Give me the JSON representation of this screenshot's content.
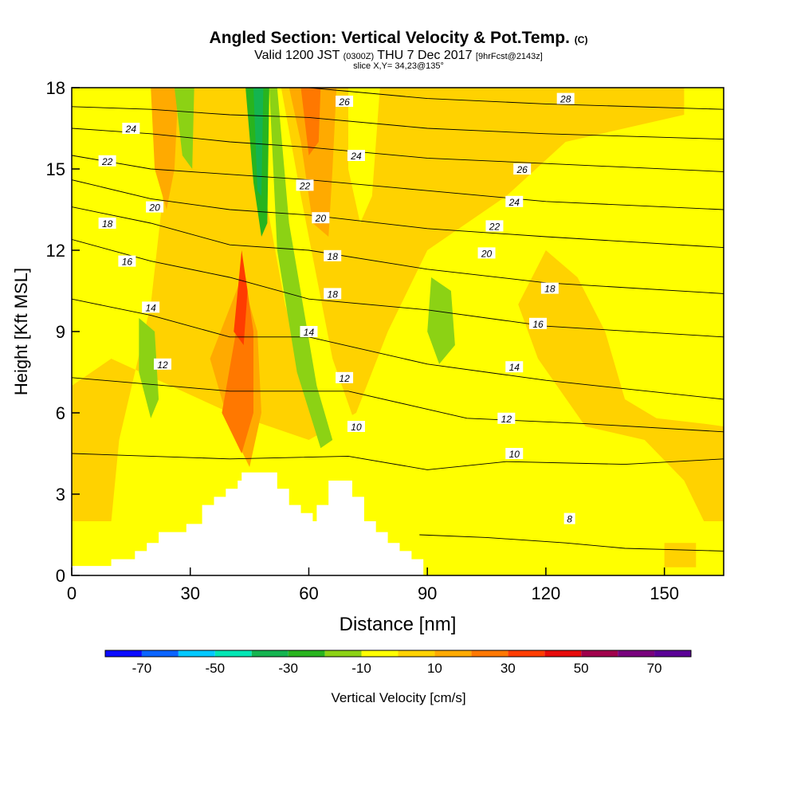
{
  "header": {
    "title": "Angled Section: Vertical Velocity & Pot.Temp.",
    "title_unit": "(C)",
    "valid_prefix": "Valid 1200 JST",
    "valid_utc": "(0300Z)",
    "valid_date": "THU 7 Dec 2017",
    "forecast_info": "[9hrFcst@2143z]",
    "slice_info": "slice X,Y= 34,23@135°"
  },
  "chart_data": {
    "type": "heatmap",
    "xlabel": "Distance [nm]",
    "ylabel": "Height [Kft MSL]",
    "xlim": [
      0,
      165
    ],
    "ylim": [
      0,
      18
    ],
    "x_ticks": [
      0,
      30,
      60,
      90,
      120,
      150
    ],
    "y_ticks": [
      0,
      3,
      6,
      9,
      12,
      15,
      18
    ],
    "colorbar": {
      "label": "Vertical Velocity [cm/s]",
      "tick_labels": [
        "-70",
        "-50",
        "-30",
        "-10",
        "10",
        "30",
        "50",
        "70"
      ],
      "tick_values": [
        -70,
        -50,
        -30,
        -10,
        10,
        30,
        50,
        70
      ],
      "bins": [
        -80,
        -70,
        -60,
        -50,
        -40,
        -30,
        -20,
        -10,
        0,
        10,
        20,
        30,
        40,
        50,
        60,
        70,
        80
      ],
      "colors": [
        "#0a0aff",
        "#0a64ff",
        "#00c8ff",
        "#00e6b4",
        "#14b450",
        "#28b41e",
        "#8cd214",
        "#ffff00",
        "#ffd200",
        "#ffaa00",
        "#ff7800",
        "#ff3c00",
        "#e60a0a",
        "#a0004b",
        "#78007d",
        "#5a0096"
      ]
    },
    "terrain_profile": [
      [
        10,
        0.6
      ],
      [
        16,
        0.6
      ],
      [
        16,
        0.9
      ],
      [
        19,
        0.9
      ],
      [
        19,
        1.2
      ],
      [
        22,
        1.2
      ],
      [
        22,
        1.6
      ],
      [
        29,
        1.6
      ],
      [
        29,
        1.9
      ],
      [
        33,
        1.9
      ],
      [
        33,
        2.6
      ],
      [
        36,
        2.6
      ],
      [
        36,
        2.9
      ],
      [
        39,
        2.9
      ],
      [
        39,
        3.2
      ],
      [
        42,
        3.2
      ],
      [
        42,
        3.5
      ],
      [
        43,
        3.5
      ],
      [
        43,
        3.8
      ],
      [
        52,
        3.8
      ],
      [
        52,
        3.2
      ],
      [
        55,
        3.2
      ],
      [
        55,
        2.6
      ],
      [
        58,
        2.6
      ],
      [
        58,
        2.3
      ],
      [
        61,
        2.3
      ],
      [
        61,
        2.0
      ],
      [
        62,
        2.0
      ],
      [
        62,
        2.6
      ],
      [
        65,
        2.6
      ],
      [
        65,
        3.5
      ],
      [
        71,
        3.5
      ],
      [
        71,
        2.9
      ],
      [
        74,
        2.9
      ],
      [
        74,
        2.0
      ],
      [
        77,
        2.0
      ],
      [
        77,
        1.6
      ],
      [
        80,
        1.6
      ],
      [
        80,
        1.2
      ],
      [
        83,
        1.2
      ],
      [
        83,
        0.9
      ],
      [
        86,
        0.9
      ],
      [
        86,
        0.6
      ],
      [
        89,
        0.6
      ],
      [
        89,
        0
      ]
    ],
    "velocity_regions": [
      {
        "value": 5,
        "points": [
          [
            0,
            2
          ],
          [
            10,
            2
          ],
          [
            12,
            5
          ],
          [
            20,
            10
          ],
          [
            25,
            16.5
          ],
          [
            30,
            18
          ],
          [
            155,
            18
          ],
          [
            155,
            17
          ],
          [
            125,
            16
          ],
          [
            110,
            14
          ],
          [
            90,
            12
          ],
          [
            80,
            9
          ],
          [
            72,
            6
          ],
          [
            60,
            5
          ],
          [
            40,
            6
          ],
          [
            25,
            7
          ],
          [
            10,
            8
          ],
          [
            0,
            7
          ]
        ]
      },
      {
        "value": 5,
        "points": [
          [
            120,
            12
          ],
          [
            128,
            11
          ],
          [
            135,
            9
          ],
          [
            140,
            6.5
          ],
          [
            148,
            5.8
          ],
          [
            160,
            5.6
          ],
          [
            165,
            5.5
          ],
          [
            165,
            2
          ],
          [
            160,
            2
          ],
          [
            155,
            3.5
          ],
          [
            145,
            5
          ],
          [
            130,
            5.5
          ],
          [
            118,
            8
          ],
          [
            113,
            10
          ]
        ]
      },
      {
        "value": 5,
        "points": [
          [
            150,
            0.3
          ],
          [
            158,
            0.3
          ],
          [
            158,
            1.2
          ],
          [
            150,
            1.2
          ]
        ]
      },
      {
        "value": 5,
        "points": [
          [
            2,
            4.2
          ],
          [
            8,
            4.6
          ],
          [
            9,
            3.2
          ],
          [
            6,
            2.3
          ],
          [
            1,
            2.6
          ]
        ]
      },
      {
        "value": 15,
        "points": [
          [
            20,
            18
          ],
          [
            27,
            18
          ],
          [
            26,
            15
          ],
          [
            24,
            13.5
          ],
          [
            21,
            15
          ]
        ]
      },
      {
        "value": 15,
        "points": [
          [
            35,
            8
          ],
          [
            43,
            11
          ],
          [
            47,
            9
          ],
          [
            48,
            6
          ],
          [
            45,
            4
          ],
          [
            40,
            5.5
          ]
        ]
      },
      {
        "value": 15,
        "points": [
          [
            55,
            18
          ],
          [
            67,
            18
          ],
          [
            66,
            15
          ],
          [
            65,
            12.5
          ],
          [
            61,
            13
          ],
          [
            58,
            16
          ]
        ]
      },
      {
        "value": 25,
        "points": [
          [
            38,
            6
          ],
          [
            44,
            11
          ],
          [
            46,
            9
          ],
          [
            46,
            6
          ],
          [
            43,
            4.5
          ]
        ]
      },
      {
        "value": 25,
        "points": [
          [
            58,
            18
          ],
          [
            63,
            18
          ],
          [
            62.5,
            16
          ],
          [
            60,
            15.5
          ]
        ]
      },
      {
        "value": 35,
        "points": [
          [
            41,
            9
          ],
          [
            43,
            12
          ],
          [
            44.5,
            10.5
          ],
          [
            43.5,
            8.5
          ]
        ]
      },
      {
        "value": -5,
        "points": [
          [
            47,
            18
          ],
          [
            53,
            18
          ],
          [
            58,
            14
          ],
          [
            66,
            8
          ],
          [
            72,
            5.5
          ],
          [
            68,
            4.5
          ],
          [
            60,
            7
          ],
          [
            54,
            10
          ],
          [
            49,
            14
          ]
        ]
      },
      {
        "value": -5,
        "points": [
          [
            70,
            18
          ],
          [
            78,
            18
          ],
          [
            76,
            14
          ],
          [
            73,
            13
          ],
          [
            70,
            15
          ]
        ]
      },
      {
        "value": -15,
        "points": [
          [
            17,
            9.5
          ],
          [
            21,
            9
          ],
          [
            22,
            6.5
          ],
          [
            20,
            5.8
          ],
          [
            17,
            7.5
          ]
        ]
      },
      {
        "value": -15,
        "points": [
          [
            91,
            11
          ],
          [
            96,
            10.5
          ],
          [
            97,
            8.5
          ],
          [
            93,
            7.8
          ],
          [
            90,
            9
          ]
        ]
      },
      {
        "value": -15,
        "points": [
          [
            50,
            18
          ],
          [
            52,
            18
          ],
          [
            55,
            13
          ],
          [
            62,
            7
          ],
          [
            66,
            5
          ],
          [
            63,
            4.7
          ],
          [
            57,
            7.5
          ],
          [
            52,
            12
          ]
        ]
      },
      {
        "value": -15,
        "points": [
          [
            26,
            18
          ],
          [
            31,
            18
          ],
          [
            30.5,
            15
          ],
          [
            28,
            15.5
          ]
        ]
      },
      {
        "value": -25,
        "points": [
          [
            44,
            18
          ],
          [
            50,
            18
          ],
          [
            49.5,
            13
          ],
          [
            48,
            12.5
          ],
          [
            46,
            14.5
          ]
        ]
      },
      {
        "value": -35,
        "points": [
          [
            46,
            18
          ],
          [
            48.5,
            18
          ],
          [
            48,
            14
          ],
          [
            47,
            14.2
          ]
        ]
      }
    ],
    "contours": [
      {
        "label": "8",
        "points": [
          [
            88,
            1.5
          ],
          [
            105,
            1.4
          ],
          [
            125,
            1.2
          ],
          [
            140,
            1.0
          ],
          [
            165,
            0.9
          ]
        ],
        "label_at": [
          126,
          2.1
        ]
      },
      {
        "label": "10",
        "points": [
          [
            0,
            4.5
          ],
          [
            40,
            4.3
          ],
          [
            70,
            4.4
          ],
          [
            90,
            3.9
          ],
          [
            110,
            4.2
          ],
          [
            140,
            4.1
          ],
          [
            165,
            4.3
          ]
        ],
        "label_at": [
          112,
          4.5
        ]
      },
      {
        "label": "12",
        "points": [
          [
            0,
            7.3
          ],
          [
            40,
            6.8
          ],
          [
            70,
            6.8
          ],
          [
            100,
            5.8
          ],
          [
            130,
            5.6
          ],
          [
            165,
            5.3
          ]
        ],
        "label_at": [
          110,
          5.8
        ]
      },
      {
        "label": "14",
        "points": [
          [
            0,
            10.2
          ],
          [
            20,
            9.6
          ],
          [
            40,
            8.8
          ],
          [
            60,
            8.8
          ],
          [
            90,
            7.8
          ],
          [
            120,
            7.2
          ],
          [
            165,
            6.5
          ]
        ],
        "label_at": [
          112,
          7.7
        ]
      },
      {
        "label": "16",
        "points": [
          [
            0,
            12.4
          ],
          [
            20,
            11.6
          ],
          [
            40,
            11.0
          ],
          [
            60,
            10.2
          ],
          [
            90,
            9.8
          ],
          [
            120,
            9.2
          ],
          [
            165,
            8.8
          ]
        ],
        "label_at": [
          118,
          9.3
        ]
      },
      {
        "label": "18",
        "points": [
          [
            0,
            13.6
          ],
          [
            20,
            13.0
          ],
          [
            40,
            12.2
          ],
          [
            60,
            12.0
          ],
          [
            90,
            11.3
          ],
          [
            120,
            10.8
          ],
          [
            165,
            10.4
          ]
        ],
        "label_at": [
          121,
          10.6
        ]
      },
      {
        "label": "20",
        "points": [
          [
            0,
            14.6
          ],
          [
            20,
            13.9
          ],
          [
            40,
            13.5
          ],
          [
            60,
            13.3
          ],
          [
            90,
            12.8
          ],
          [
            120,
            12.5
          ],
          [
            165,
            12.1
          ]
        ],
        "label_at": [
          105,
          11.9
        ]
      },
      {
        "label": "22",
        "points": [
          [
            0,
            15.5
          ],
          [
            20,
            15.0
          ],
          [
            40,
            14.8
          ],
          [
            60,
            14.6
          ],
          [
            90,
            14.2
          ],
          [
            120,
            13.8
          ],
          [
            165,
            13.5
          ]
        ],
        "label_at": [
          107,
          12.9
        ]
      },
      {
        "label": "24",
        "points": [
          [
            0,
            16.5
          ],
          [
            20,
            16.3
          ],
          [
            40,
            16.0
          ],
          [
            60,
            15.8
          ],
          [
            90,
            15.4
          ],
          [
            120,
            15.2
          ],
          [
            165,
            14.9
          ]
        ],
        "label_at": [
          112,
          13.8
        ]
      },
      {
        "label": "26",
        "points": [
          [
            0,
            17.3
          ],
          [
            20,
            17.2
          ],
          [
            40,
            17.0
          ],
          [
            60,
            16.9
          ],
          [
            90,
            16.5
          ],
          [
            120,
            16.3
          ],
          [
            165,
            16.1
          ]
        ],
        "label_at": [
          114,
          15.0
        ]
      },
      {
        "label": "28",
        "points": [
          [
            60,
            18
          ],
          [
            90,
            17.6
          ],
          [
            120,
            17.4
          ],
          [
            165,
            17.2
          ]
        ],
        "label_at": [
          125,
          17.6
        ]
      }
    ],
    "extra_labels": [
      {
        "label": "24",
        "at": [
          15,
          16.5
        ]
      },
      {
        "label": "22",
        "at": [
          9,
          15.3
        ]
      },
      {
        "label": "20",
        "at": [
          21,
          13.6
        ]
      },
      {
        "label": "18",
        "at": [
          9,
          13.0
        ]
      },
      {
        "label": "16",
        "at": [
          14,
          11.6
        ]
      },
      {
        "label": "14",
        "at": [
          20,
          9.9
        ]
      },
      {
        "label": "12",
        "at": [
          23,
          7.8
        ]
      },
      {
        "label": "22",
        "at": [
          59,
          14.4
        ]
      },
      {
        "label": "20",
        "at": [
          63,
          13.2
        ]
      },
      {
        "label": "18",
        "at": [
          66,
          11.8
        ]
      },
      {
        "label": "18",
        "at": [
          66,
          10.4
        ]
      },
      {
        "label": "14",
        "at": [
          60,
          9.0
        ]
      },
      {
        "label": "12",
        "at": [
          69,
          7.3
        ]
      },
      {
        "label": "10",
        "at": [
          72,
          5.5
        ]
      },
      {
        "label": "26",
        "at": [
          69,
          17.5
        ]
      },
      {
        "label": "24",
        "at": [
          72,
          15.5
        ]
      }
    ]
  }
}
